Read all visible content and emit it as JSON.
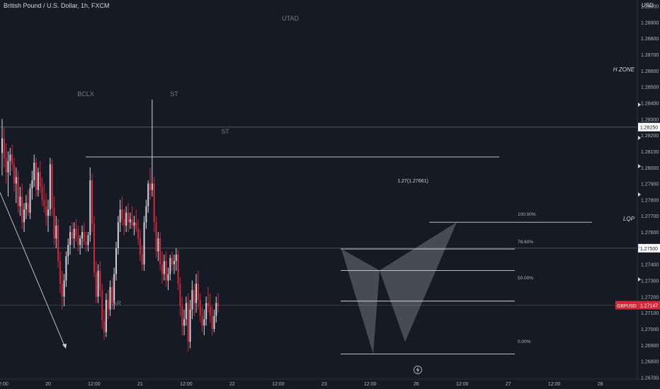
{
  "header": {
    "symbol_title": "British Pound / U.S. Dollar, 1h, FXCM",
    "currency": "USD"
  },
  "chart_data": {
    "type": "candlestick",
    "ylim": [
      1.2675,
      1.2908
    ],
    "y_ticks": [
      "1.29000",
      "1.28900",
      "1.28800",
      "1.28700",
      "1.28600",
      "1.28500",
      "1.28400",
      "1.28300",
      "1.28200",
      "1.28100",
      "1.28000",
      "1.27900",
      "1.27800",
      "1.27700",
      "1.27600",
      "1.27500",
      "1.27400",
      "1.27300",
      "1.27200",
      "1.27100",
      "1.27000",
      "1.26900",
      "1.26800",
      "1.26700"
    ],
    "x_ticks": [
      {
        "label": "12:00",
        "i": 0
      },
      {
        "label": "20",
        "i": 23
      },
      {
        "label": "12:00",
        "i": 46
      },
      {
        "label": "21",
        "i": 69
      },
      {
        "label": "12:00",
        "i": 92
      },
      {
        "label": "22",
        "i": 115
      },
      {
        "label": "12:00",
        "i": 138
      },
      {
        "label": "23",
        "i": 161
      },
      {
        "label": "12:00",
        "i": 184
      },
      {
        "label": "26",
        "i": 207
      },
      {
        "label": "12:00",
        "i": 230
      },
      {
        "label": "27",
        "i": 253
      },
      {
        "label": "12:00",
        "i": 276
      },
      {
        "label": "28",
        "i": 299
      }
    ],
    "up_color": "#d1d4dc",
    "down_color": "#d1283a",
    "candles": [
      [
        1.2809,
        1.283,
        1.2795,
        1.2818
      ],
      [
        1.2818,
        1.2825,
        1.28,
        1.2806
      ],
      [
        1.2806,
        1.2815,
        1.279,
        1.2797
      ],
      [
        1.2797,
        1.281,
        1.2782,
        1.2804
      ],
      [
        1.2804,
        1.2812,
        1.2795,
        1.2808
      ],
      [
        1.2808,
        1.2814,
        1.2798,
        1.2802
      ],
      [
        1.2802,
        1.2806,
        1.2785,
        1.279
      ],
      [
        1.279,
        1.28,
        1.2778,
        1.2794
      ],
      [
        1.2794,
        1.2798,
        1.2772,
        1.2776
      ],
      [
        1.2776,
        1.2788,
        1.277,
        1.2782
      ],
      [
        1.2782,
        1.279,
        1.2762,
        1.2766
      ],
      [
        1.2766,
        1.2778,
        1.276,
        1.2774
      ],
      [
        1.2774,
        1.2783,
        1.2768,
        1.2778
      ],
      [
        1.2778,
        1.2786,
        1.277,
        1.2772
      ],
      [
        1.2772,
        1.279,
        1.2768,
        1.2787
      ],
      [
        1.2787,
        1.2798,
        1.278,
        1.2792
      ],
      [
        1.2792,
        1.2808,
        1.2788,
        1.2803
      ],
      [
        1.2803,
        1.2806,
        1.2782,
        1.2786
      ],
      [
        1.2786,
        1.28,
        1.2782,
        1.2797
      ],
      [
        1.2797,
        1.2804,
        1.2784,
        1.2788
      ],
      [
        1.2788,
        1.2794,
        1.2776,
        1.278
      ],
      [
        1.278,
        1.279,
        1.2772,
        1.2776
      ],
      [
        1.2776,
        1.2784,
        1.2764,
        1.277
      ],
      [
        1.277,
        1.278,
        1.276,
        1.2774
      ],
      [
        1.2774,
        1.2806,
        1.277,
        1.2802
      ],
      [
        1.2802,
        1.2805,
        1.277,
        1.2775
      ],
      [
        1.2775,
        1.2782,
        1.2752,
        1.2756
      ],
      [
        1.2756,
        1.277,
        1.275,
        1.2764
      ],
      [
        1.2764,
        1.2768,
        1.2738,
        1.2742
      ],
      [
        1.2742,
        1.2748,
        1.2722,
        1.2728
      ],
      [
        1.2728,
        1.2736,
        1.2712,
        1.272
      ],
      [
        1.272,
        1.2734,
        1.2714,
        1.273
      ],
      [
        1.273,
        1.2748,
        1.2726,
        1.2745
      ],
      [
        1.2745,
        1.2756,
        1.274,
        1.2752
      ],
      [
        1.2752,
        1.2764,
        1.2746,
        1.276
      ],
      [
        1.276,
        1.2766,
        1.2752,
        1.2756
      ],
      [
        1.2756,
        1.2766,
        1.275,
        1.2762
      ],
      [
        1.2762,
        1.2768,
        1.2754,
        1.2758
      ],
      [
        1.2758,
        1.2764,
        1.2748,
        1.2752
      ],
      [
        1.2752,
        1.2758,
        1.2746,
        1.2756
      ],
      [
        1.2756,
        1.2764,
        1.275,
        1.276
      ],
      [
        1.276,
        1.2766,
        1.2752,
        1.2754
      ],
      [
        1.2754,
        1.276,
        1.2748,
        1.2752
      ],
      [
        1.2752,
        1.276,
        1.2748,
        1.2758
      ],
      [
        1.2758,
        1.28,
        1.2754,
        1.2792
      ],
      [
        1.2792,
        1.2796,
        1.276,
        1.2765
      ],
      [
        1.2765,
        1.277,
        1.2732,
        1.2735
      ],
      [
        1.2735,
        1.2742,
        1.2716,
        1.272
      ],
      [
        1.272,
        1.274,
        1.2716,
        1.2736
      ],
      [
        1.2736,
        1.2742,
        1.272,
        1.2724
      ],
      [
        1.2724,
        1.2728,
        1.27,
        1.2705
      ],
      [
        1.2705,
        1.2712,
        1.2693,
        1.2698
      ],
      [
        1.2698,
        1.2722,
        1.2695,
        1.2718
      ],
      [
        1.2718,
        1.2724,
        1.2706,
        1.2712
      ],
      [
        1.2712,
        1.273,
        1.2708,
        1.2726
      ],
      [
        1.2726,
        1.2732,
        1.2712,
        1.2716
      ],
      [
        1.2716,
        1.2738,
        1.2712,
        1.2734
      ],
      [
        1.2734,
        1.2754,
        1.273,
        1.275
      ],
      [
        1.275,
        1.277,
        1.2746,
        1.2766
      ],
      [
        1.2766,
        1.278,
        1.276,
        1.2774
      ],
      [
        1.2774,
        1.2782,
        1.2764,
        1.2768
      ],
      [
        1.2768,
        1.2774,
        1.2758,
        1.2764
      ],
      [
        1.2764,
        1.2776,
        1.276,
        1.2772
      ],
      [
        1.2772,
        1.2778,
        1.276,
        1.2766
      ],
      [
        1.2766,
        1.2772,
        1.2762,
        1.2768
      ],
      [
        1.2768,
        1.2776,
        1.2762,
        1.2764
      ],
      [
        1.2764,
        1.277,
        1.2758,
        1.2766
      ],
      [
        1.2766,
        1.2774,
        1.276,
        1.2762
      ],
      [
        1.2762,
        1.2768,
        1.2752,
        1.2756
      ],
      [
        1.2756,
        1.2762,
        1.2742,
        1.2746
      ],
      [
        1.2746,
        1.2752,
        1.2736,
        1.274
      ],
      [
        1.274,
        1.277,
        1.2736,
        1.2766
      ],
      [
        1.2766,
        1.278,
        1.2762,
        1.2776
      ],
      [
        1.2776,
        1.2792,
        1.2772,
        1.279
      ],
      [
        1.279,
        1.28,
        1.278,
        1.2786
      ],
      [
        1.2786,
        1.2842,
        1.2782,
        1.279
      ],
      [
        1.279,
        1.2794,
        1.276,
        1.2766
      ],
      [
        1.2766,
        1.277,
        1.2744,
        1.2748
      ],
      [
        1.2748,
        1.276,
        1.2742,
        1.2756
      ],
      [
        1.2756,
        1.276,
        1.2736,
        1.274
      ],
      [
        1.274,
        1.2748,
        1.2728,
        1.2734
      ],
      [
        1.2734,
        1.2746,
        1.273,
        1.2742
      ],
      [
        1.2742,
        1.2748,
        1.2726,
        1.273
      ],
      [
        1.273,
        1.2738,
        1.2724,
        1.2734
      ],
      [
        1.2734,
        1.2746,
        1.273,
        1.2744
      ],
      [
        1.2744,
        1.2748,
        1.2736,
        1.274
      ],
      [
        1.274,
        1.2746,
        1.2734,
        1.2742
      ],
      [
        1.2742,
        1.275,
        1.2736,
        1.2746
      ],
      [
        1.2746,
        1.2749,
        1.2724,
        1.2728
      ],
      [
        1.2728,
        1.2732,
        1.2708,
        1.2714
      ],
      [
        1.2714,
        1.272,
        1.2696,
        1.2702
      ],
      [
        1.2702,
        1.2712,
        1.2696,
        1.2706
      ],
      [
        1.2706,
        1.272,
        1.2702,
        1.2716
      ],
      [
        1.2716,
        1.2722,
        1.2686,
        1.2692
      ],
      [
        1.2692,
        1.2718,
        1.2688,
        1.2712
      ],
      [
        1.2712,
        1.273,
        1.2706,
        1.2724
      ],
      [
        1.2724,
        1.2728,
        1.2708,
        1.2716
      ],
      [
        1.2716,
        1.2734,
        1.271,
        1.2728
      ],
      [
        1.2728,
        1.2736,
        1.2712,
        1.2718
      ],
      [
        1.2718,
        1.2722,
        1.2704,
        1.2708
      ],
      [
        1.2708,
        1.2714,
        1.2698,
        1.2702
      ],
      [
        1.2702,
        1.2712,
        1.2696,
        1.2706
      ],
      [
        1.2706,
        1.272,
        1.2702,
        1.2716
      ],
      [
        1.2716,
        1.2726,
        1.271,
        1.2714
      ],
      [
        1.2714,
        1.2722,
        1.2704,
        1.2708
      ],
      [
        1.2708,
        1.2714,
        1.2696,
        1.27
      ],
      [
        1.27,
        1.2712,
        1.2698,
        1.2708
      ],
      [
        1.2708,
        1.272,
        1.2704,
        1.2716
      ],
      [
        1.2716,
        1.2722,
        1.271,
        1.2714
      ]
    ],
    "horizontal_levels": [
      {
        "name": "H ZONE",
        "price": 1.2825
      },
      {
        "name": "LQP",
        "price": 1.275
      }
    ],
    "current_price": {
      "symbol": "GBPUSD",
      "price": "1.27147",
      "value": 1.27147
    },
    "bclx_line": {
      "price": 1.28065
    },
    "extension_label": "1.27(1.27661)",
    "extension_price": 1.27661,
    "fib_levels": [
      {
        "label": "100.00%",
        "price": 1.27495
      },
      {
        "label": "78.60%",
        "price": 1.27362
      },
      {
        "label": "50.00%",
        "price": 1.27172
      },
      {
        "label": "0.00%",
        "price": 1.26845
      }
    ],
    "annotations": [
      "UTAD",
      "BCLX",
      "ST",
      "ST",
      "AR"
    ]
  }
}
